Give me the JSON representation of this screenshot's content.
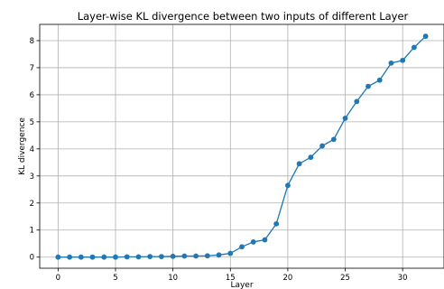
{
  "chart_data": {
    "type": "line",
    "title": "Layer-wise KL divergence between two inputs of different Layer",
    "xlabel": "Layer",
    "ylabel": "KL divergence",
    "xlim": [
      -1.6,
      33.6
    ],
    "ylim": [
      -0.41,
      8.6
    ],
    "xticks": [
      0,
      5,
      10,
      15,
      20,
      25,
      30
    ],
    "yticks": [
      0,
      1,
      2,
      3,
      4,
      5,
      6,
      7,
      8
    ],
    "grid": true,
    "marker": "circle",
    "color": "#1f77b4",
    "series": [
      {
        "x": [
          0,
          1,
          2,
          3,
          4,
          5,
          6,
          7,
          8,
          9,
          10,
          11,
          12,
          13,
          14,
          15,
          16,
          17,
          18,
          19,
          20,
          21,
          22,
          23,
          24,
          25,
          26,
          27,
          28,
          29,
          30,
          31,
          32
        ],
        "values": [
          0.0,
          0.0,
          0.0,
          0.0,
          0.0,
          0.0,
          0.01,
          0.01,
          0.02,
          0.02,
          0.03,
          0.04,
          0.04,
          0.05,
          0.08,
          0.14,
          0.38,
          0.56,
          0.64,
          1.23,
          2.65,
          3.45,
          3.69,
          4.11,
          4.35,
          5.13,
          5.75,
          6.31,
          6.54,
          7.17,
          7.27,
          7.75,
          8.16
        ]
      }
    ]
  }
}
